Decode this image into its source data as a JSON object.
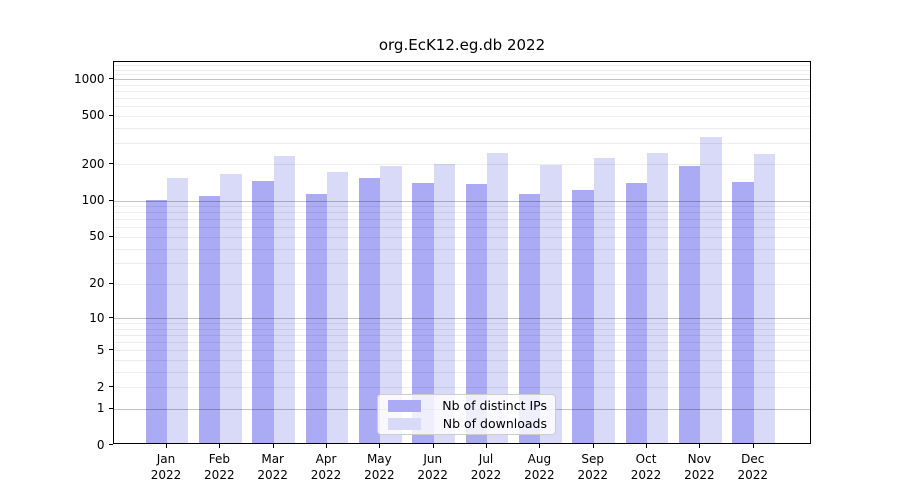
{
  "chart_data": {
    "type": "bar",
    "title": "org.EcK12.eg.db 2022",
    "categories": [
      "Jan",
      "Feb",
      "Mar",
      "Apr",
      "May",
      "Jun",
      "Jul",
      "Aug",
      "Sep",
      "Oct",
      "Nov",
      "Dec"
    ],
    "year": "2022",
    "series": [
      {
        "name": "Nb of distinct IPs",
        "color": "#aaaaf5",
        "values": [
          99,
          107,
          141,
          112,
          151,
          136,
          135,
          112,
          120,
          138,
          188,
          140
        ]
      },
      {
        "name": "Nb of downloads",
        "color": "#d9d9f8",
        "values": [
          150,
          163,
          228,
          170,
          188,
          195,
          242,
          191,
          222,
          243,
          325,
          238
        ]
      }
    ],
    "yscale": "log10(value+1)",
    "y_ticks": [
      0,
      1,
      2,
      5,
      10,
      20,
      50,
      100,
      200,
      500,
      1000
    ],
    "y_major_gridlines": [
      1,
      10,
      100,
      1000
    ],
    "ylim": [
      0,
      1400
    ],
    "xlabel": "",
    "ylabel": "",
    "grid": true,
    "legend_position": "lower center"
  }
}
